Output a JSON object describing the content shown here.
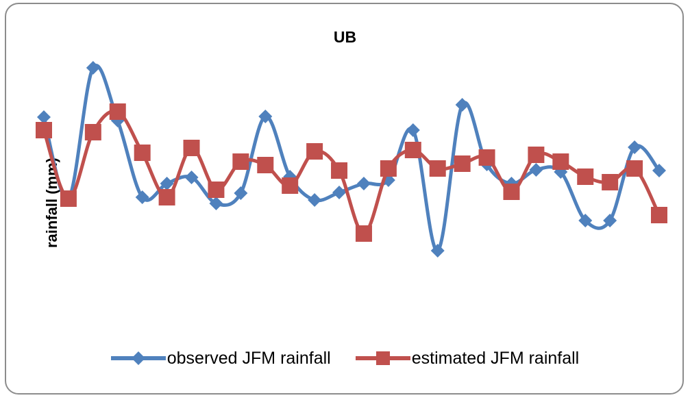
{
  "chart_data": {
    "type": "line",
    "title": "UB",
    "xlabel": "",
    "ylabel": "rainfall (mm)",
    "smooth": true,
    "x": [
      1,
      2,
      3,
      4,
      5,
      6,
      7,
      8,
      9,
      10,
      11,
      12,
      13,
      14,
      15,
      16,
      17,
      18,
      19,
      20,
      21,
      22,
      23,
      24,
      25,
      26
    ],
    "series": [
      {
        "name": "observed JFM rainfall",
        "color": "#4f81bd",
        "marker": "diamond",
        "values": [
          171,
          290,
          99,
          176,
          288,
          268,
          259,
          297,
          282,
          170,
          258,
          292,
          281,
          268,
          263,
          190,
          366,
          153,
          240,
          268,
          248,
          251,
          322,
          322,
          215,
          249
        ]
      },
      {
        "name": "estimated JFM rainfall",
        "color": "#c0504d",
        "marker": "square",
        "values": [
          190,
          290,
          193,
          163,
          223,
          288,
          216,
          277,
          236,
          241,
          271,
          221,
          249,
          341,
          246,
          219,
          246,
          239,
          230,
          280,
          226,
          236,
          258,
          266,
          246,
          314
        ]
      }
    ],
    "ylim": [
      0,
      400
    ],
    "y_inverted": true,
    "grid": false,
    "y_ticks_shown": false,
    "legend_position": "bottom"
  }
}
